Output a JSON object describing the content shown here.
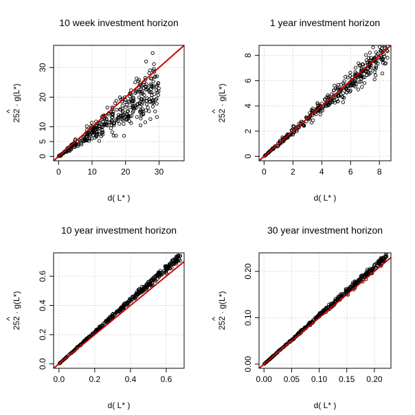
{
  "chart_data": [
    {
      "type": "scatter",
      "title": "10 week investment horizon",
      "xlabel": "d( L* )",
      "ylabel": "252 · g(L*)",
      "ylabel_hat": "^",
      "xlim": [
        -1.5,
        37.5
      ],
      "ylim": [
        -1.5,
        37.5
      ],
      "xticks": [
        0,
        10,
        20,
        30
      ],
      "xtick_labels": [
        "0",
        "10",
        "20",
        "30"
      ],
      "yticks": [
        0,
        5,
        10,
        20,
        30
      ],
      "ytick_labels": [
        "0",
        "5",
        "10",
        "20",
        "30"
      ],
      "grid": true,
      "reference_line": {
        "slope": 1,
        "intercept": 0,
        "color": "#cc0000"
      },
      "point_color": "#000000",
      "trend": {
        "x_max": 30,
        "y_max": 24,
        "spread": 0.16
      }
    },
    {
      "type": "scatter",
      "title": "1 year investment horizon",
      "xlabel": "d( L* )",
      "ylabel": "252 · g(L*)",
      "ylabel_hat": "^",
      "xlim": [
        -0.35,
        8.8
      ],
      "ylim": [
        -0.35,
        8.8
      ],
      "xticks": [
        0,
        2,
        4,
        6,
        8
      ],
      "xtick_labels": [
        "0",
        "2",
        "4",
        "6",
        "8"
      ],
      "yticks": [
        0,
        2,
        4,
        6,
        8
      ],
      "ytick_labels": [
        "0",
        "2",
        "4",
        "6",
        "8"
      ],
      "grid": true,
      "reference_line": {
        "slope": 1,
        "intercept": 0,
        "color": "#cc0000"
      },
      "point_color": "#000000",
      "trend": {
        "x_max": 8.6,
        "y_max": 8.4,
        "spread": 0.07
      }
    },
    {
      "type": "scatter",
      "title": "10 year investment horizon",
      "xlabel": "d( L* )",
      "ylabel": "252 · g(L*)",
      "ylabel_hat": "^",
      "xlim": [
        -0.03,
        0.7
      ],
      "ylim": [
        -0.03,
        0.76
      ],
      "xticks": [
        0,
        0.2,
        0.4,
        0.6
      ],
      "xtick_labels": [
        "0.0",
        "0.2",
        "0.4",
        "0.6"
      ],
      "yticks": [
        0,
        0.2,
        0.4,
        0.6
      ],
      "ytick_labels": [
        "0.0",
        "0.2",
        "0.4",
        "0.6"
      ],
      "grid": true,
      "reference_line": {
        "slope": 1,
        "intercept": 0,
        "color": "#cc0000"
      },
      "point_color": "#000000",
      "trend": {
        "x_max": 0.68,
        "y_max": 0.74,
        "spread": 0.02
      }
    },
    {
      "type": "scatter",
      "title": "30 year investment horizon",
      "xlabel": "d( L* )",
      "ylabel": "252 · g(L*)",
      "ylabel_hat": "^",
      "xlim": [
        -0.009,
        0.23
      ],
      "ylim": [
        -0.009,
        0.24
      ],
      "xticks": [
        0,
        0.05,
        0.1,
        0.15,
        0.2
      ],
      "xtick_labels": [
        "0.00",
        "0.05",
        "0.10",
        "0.15",
        "0.20"
      ],
      "yticks": [
        0,
        0.1,
        0.2
      ],
      "ytick_labels": [
        "0.00",
        "0.10",
        "0.20"
      ],
      "grid": true,
      "reference_line": {
        "slope": 1,
        "intercept": 0,
        "color": "#cc0000"
      },
      "point_color": "#000000",
      "trend": {
        "x_max": 0.222,
        "y_max": 0.232,
        "spread": 0.02
      }
    }
  ]
}
